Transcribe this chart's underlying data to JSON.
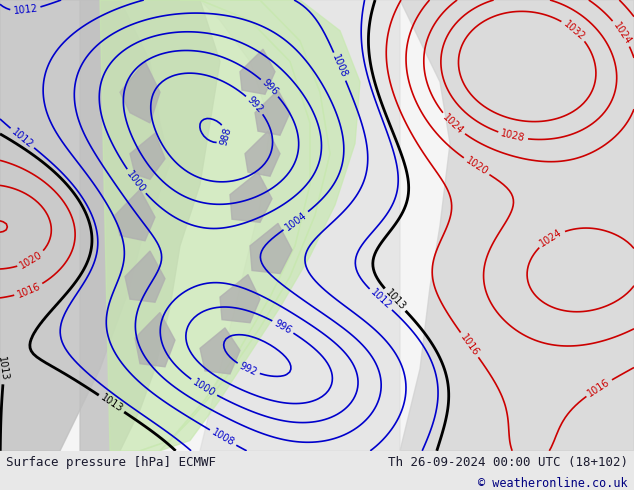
{
  "title_left": "Surface pressure [hPa] ECMWF",
  "title_right": "Th 26-09-2024 00:00 UTC (18+102)",
  "copyright": "© weatheronline.co.uk",
  "bg_color": "#e8e8e8",
  "map_bg_color": "#f0f0f0",
  "land_color": "#d0d0d0",
  "green_fill_color": "#c8e8b0",
  "bottom_bar_color": "#dcdcdc",
  "title_color": "#1a1a2e",
  "copyright_color": "#000080",
  "label_color_low": "#0000cc",
  "label_color_high": "#cc0000",
  "label_color_mid": "#000000",
  "contour_color_low": "#0000cc",
  "contour_color_high": "#cc0000",
  "contour_color_mid": "#000000",
  "figsize": [
    6.34,
    4.9
  ],
  "dpi": 100
}
